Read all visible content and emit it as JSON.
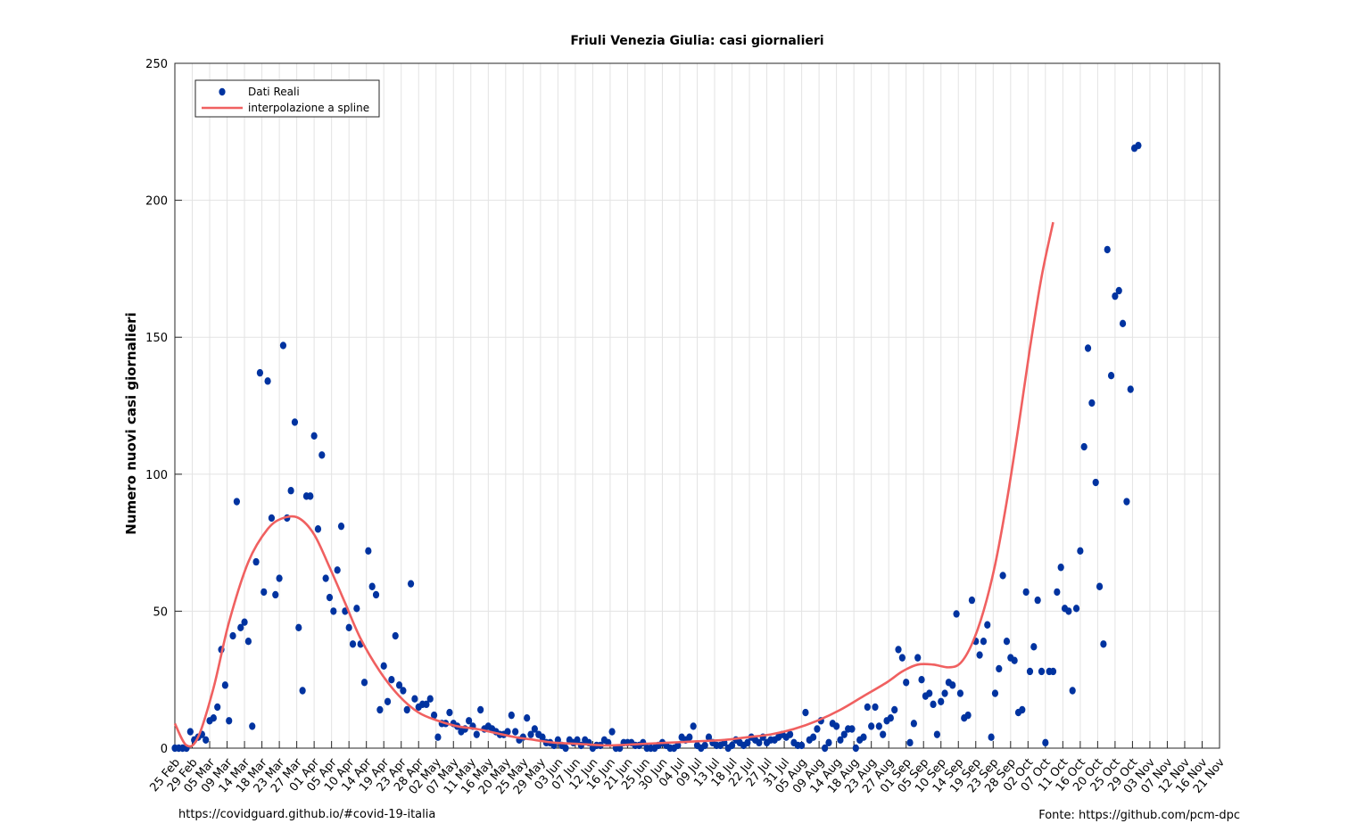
{
  "chart_data": {
    "type": "scatter",
    "title": "Friuli Venezia Giulia: casi giornalieri",
    "xlabel": "",
    "ylabel": "Numero nuovi casi giornalieri",
    "ylim": [
      0,
      250
    ],
    "yticks": [
      0,
      50,
      100,
      150,
      200,
      250
    ],
    "start_label": "25 Feb",
    "xticks": [
      "25 Feb",
      "29 Feb",
      "05 Mar",
      "09 Mar",
      "14 Mar",
      "18 Mar",
      "23 Mar",
      "27 Mar",
      "01 Apr",
      "05 Apr",
      "10 Apr",
      "14 Apr",
      "19 Apr",
      "23 Apr",
      "28 Apr",
      "02 May",
      "07 May",
      "11 May",
      "16 May",
      "20 May",
      "25 May",
      "29 May",
      "03 Jun",
      "07 Jun",
      "12 Jun",
      "16 Jun",
      "21 Jun",
      "25 Jun",
      "30 Jun",
      "04 Jul",
      "09 Jul",
      "13 Jul",
      "18 Jul",
      "22 Jul",
      "27 Jul",
      "31 Jul",
      "05 Aug",
      "09 Aug",
      "14 Aug",
      "18 Aug",
      "23 Aug",
      "27 Aug",
      "01 Sep",
      "05 Sep",
      "10 Sep",
      "14 Sep",
      "19 Sep",
      "23 Sep",
      "28 Sep",
      "02 Oct",
      "07 Oct",
      "11 Oct",
      "16 Oct",
      "20 Oct",
      "25 Oct",
      "29 Oct",
      "03 Nov",
      "07 Nov",
      "12 Nov",
      "16 Nov",
      "21 Nov"
    ],
    "grid": true,
    "legend_position": "top-left",
    "series": [
      {
        "name": "Dati Reali",
        "kind": "markers",
        "color": "#0033a0",
        "values": [
          0,
          0,
          0,
          0,
          6,
          3,
          4,
          5,
          3,
          10,
          11,
          15,
          36,
          23,
          10,
          41,
          90,
          44,
          46,
          39,
          8,
          68,
          137,
          57,
          134,
          84,
          56,
          62,
          147,
          84,
          94,
          119,
          44,
          21,
          92,
          92,
          114,
          80,
          107,
          62,
          55,
          50,
          65,
          81,
          50,
          44,
          38,
          51,
          38,
          24,
          72,
          59,
          56,
          14,
          30,
          17,
          25,
          41,
          23,
          21,
          14,
          60,
          18,
          15,
          16,
          16,
          18,
          12,
          4,
          9,
          9,
          13,
          9,
          8,
          6,
          7,
          10,
          8,
          5,
          14,
          7,
          8,
          7,
          6,
          5,
          5,
          6,
          12,
          6,
          3,
          4,
          11,
          5,
          7,
          5,
          4,
          2,
          2,
          1,
          3,
          1,
          0,
          3,
          2,
          3,
          1,
          3,
          2,
          0,
          1,
          1,
          3,
          2,
          6,
          0,
          0,
          2,
          2,
          2,
          1,
          1,
          2,
          0,
          0,
          0,
          1,
          2,
          1,
          0,
          0,
          1,
          4,
          3,
          4,
          8,
          1,
          0,
          1,
          4,
          2,
          1,
          1,
          2,
          0,
          1,
          3,
          2,
          1,
          2,
          4,
          3,
          2,
          4,
          2,
          3,
          3,
          4,
          5,
          4,
          5,
          2,
          1,
          1,
          13,
          3,
          4,
          7,
          10,
          0,
          2,
          9,
          8,
          3,
          5,
          7,
          7,
          0,
          3,
          4,
          15,
          8,
          15,
          8,
          5,
          10,
          11,
          14,
          36,
          33,
          24,
          2,
          9,
          33,
          25,
          19,
          20,
          16,
          5,
          17,
          20,
          24,
          23,
          49,
          20,
          11,
          12,
          54,
          39,
          34,
          39,
          45,
          4,
          20,
          29,
          63,
          39,
          33,
          32,
          13,
          14,
          57,
          28,
          37,
          54,
          28,
          2,
          28,
          28,
          57,
          66,
          51,
          50,
          21,
          51,
          72,
          110,
          146,
          126,
          97,
          59,
          38,
          182,
          136,
          165,
          167,
          155,
          90,
          131,
          219,
          220
        ]
      },
      {
        "name": "interpolazione a spline",
        "kind": "line",
        "color": "#f06060",
        "knots": [
          [
            0,
            9
          ],
          [
            3,
            1
          ],
          [
            6,
            4
          ],
          [
            10,
            22
          ],
          [
            14,
            46
          ],
          [
            19,
            68
          ],
          [
            24,
            80
          ],
          [
            28,
            84
          ],
          [
            32,
            84
          ],
          [
            36,
            78
          ],
          [
            40,
            66
          ],
          [
            44,
            53
          ],
          [
            48,
            40
          ],
          [
            53,
            28
          ],
          [
            58,
            19
          ],
          [
            63,
            13
          ],
          [
            68,
            10
          ],
          [
            73,
            8
          ],
          [
            78,
            7
          ],
          [
            83,
            5.5
          ],
          [
            88,
            4
          ],
          [
            93,
            3
          ],
          [
            98,
            2
          ],
          [
            105,
            1.5
          ],
          [
            112,
            1
          ],
          [
            120,
            1.5
          ],
          [
            128,
            2
          ],
          [
            135,
            2.5
          ],
          [
            142,
            3
          ],
          [
            148,
            4
          ],
          [
            154,
            5
          ],
          [
            160,
            7
          ],
          [
            166,
            10
          ],
          [
            172,
            14
          ],
          [
            178,
            19
          ],
          [
            184,
            24
          ],
          [
            188,
            28
          ],
          [
            192,
            30.5
          ],
          [
            196,
            30.5
          ],
          [
            200,
            29.5
          ],
          [
            203,
            31
          ],
          [
            206,
            38
          ],
          [
            209,
            50
          ],
          [
            212,
            67
          ],
          [
            215,
            90
          ],
          [
            218,
            117
          ],
          [
            221,
            146
          ],
          [
            224,
            172
          ],
          [
            227,
            192
          ]
        ]
      }
    ]
  },
  "footer": {
    "left": "https://covidguard.github.io/#covid-19-italia",
    "right": "Fonte: https://github.com/pcm-dpc"
  }
}
